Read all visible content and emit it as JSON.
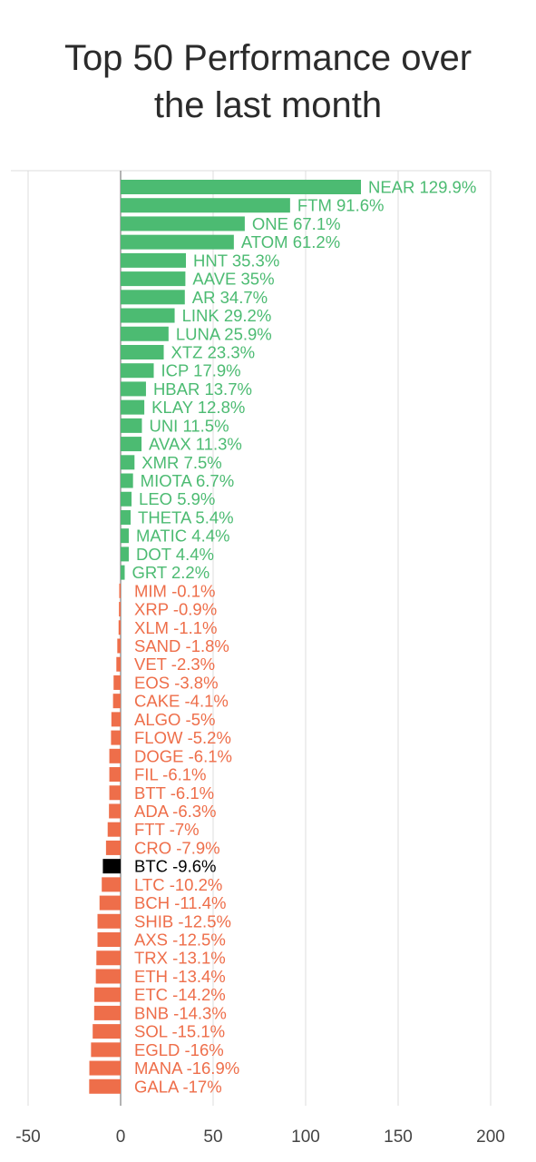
{
  "title": "Top 50 Performance over\nthe last month",
  "colors": {
    "positive": "#4cbb72",
    "negative": "#ee6e4a",
    "highlight": "#000000",
    "grid": "#dcdcdc",
    "axis": "#9a9a9a",
    "tick_text": "#444444"
  },
  "chart_data": {
    "type": "bar",
    "orientation": "horizontal",
    "title": "Top 50 Performance over the last month",
    "xlabel": "",
    "ylabel": "",
    "xlim": [
      -50,
      200
    ],
    "xticks": [
      -50,
      0,
      50,
      100,
      150,
      200
    ],
    "grid": true,
    "highlight": "BTC",
    "categories": [
      "NEAR",
      "FTM",
      "ONE",
      "ATOM",
      "HNT",
      "AAVE",
      "AR",
      "LINK",
      "LUNA",
      "XTZ",
      "ICP",
      "HBAR",
      "KLAY",
      "UNI",
      "AVAX",
      "XMR",
      "MIOTA",
      "LEO",
      "THETA",
      "MATIC",
      "DOT",
      "GRT",
      "MIM",
      "XRP",
      "XLM",
      "SAND",
      "VET",
      "EOS",
      "CAKE",
      "ALGO",
      "FLOW",
      "DOGE",
      "FIL",
      "BTT",
      "ADA",
      "FTT",
      "CRO",
      "BTC",
      "LTC",
      "BCH",
      "SHIB",
      "AXS",
      "TRX",
      "ETH",
      "ETC",
      "BNB",
      "SOL",
      "EGLD",
      "MANA",
      "GALA"
    ],
    "values": [
      129.9,
      91.6,
      67.1,
      61.2,
      35.3,
      35,
      34.7,
      29.2,
      25.9,
      23.3,
      17.9,
      13.7,
      12.8,
      11.5,
      11.3,
      7.5,
      6.7,
      5.9,
      5.4,
      4.4,
      4.4,
      2.2,
      -0.1,
      -0.9,
      -1.1,
      -1.8,
      -2.3,
      -3.8,
      -4.1,
      -5,
      -5.2,
      -6.1,
      -6.1,
      -6.1,
      -6.3,
      -7,
      -7.9,
      -9.6,
      -10.2,
      -11.4,
      -12.5,
      -12.5,
      -13.1,
      -13.4,
      -14.2,
      -14.3,
      -15.1,
      -16,
      -16.9,
      -17
    ],
    "data_labels": [
      "NEAR 129.9%",
      "FTM 91.6%",
      "ONE 67.1%",
      "ATOM 61.2%",
      "HNT 35.3%",
      "AAVE 35%",
      "AR 34.7%",
      "LINK 29.2%",
      "LUNA 25.9%",
      "XTZ 23.3%",
      "ICP 17.9%",
      "HBAR 13.7%",
      "KLAY 12.8%",
      "UNI 11.5%",
      "AVAX 11.3%",
      "XMR 7.5%",
      "MIOTA 6.7%",
      "LEO 5.9%",
      "THETA 5.4%",
      "MATIC 4.4%",
      "DOT 4.4%",
      "GRT 2.2%",
      "MIM -0.1%",
      "XRP -0.9%",
      "XLM -1.1%",
      "SAND -1.8%",
      "VET -2.3%",
      "EOS -3.8%",
      "CAKE -4.1%",
      "ALGO -5%",
      "FLOW -5.2%",
      "DOGE -6.1%",
      "FIL -6.1%",
      "BTT -6.1%",
      "ADA -6.3%",
      "FTT -7%",
      "CRO -7.9%",
      "BTC -9.6%",
      "LTC -10.2%",
      "BCH -11.4%",
      "SHIB -12.5%",
      "AXS -12.5%",
      "TRX -13.1%",
      "ETH -13.4%",
      "ETC -14.2%",
      "BNB -14.3%",
      "SOL -15.1%",
      "EGLD -16%",
      "MANA -16.9%",
      "GALA -17%"
    ],
    "tick_labels": [
      "-50",
      "0",
      "50",
      "100",
      "150",
      "200"
    ]
  }
}
